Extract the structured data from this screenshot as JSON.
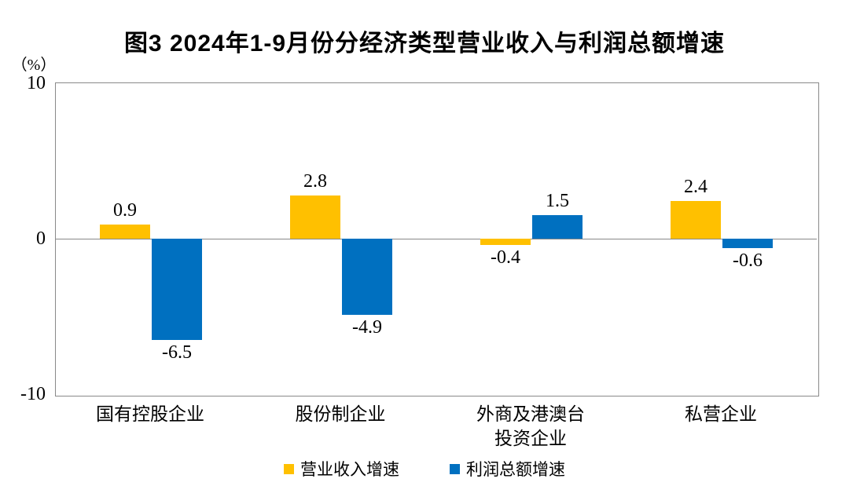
{
  "chart_data": {
    "type": "bar",
    "title": "图3  2024年1-9月份分经济类型营业收入与利润总额增速",
    "unit_label": "（%）",
    "categories": [
      "国有控股企业",
      "股份制企业",
      "外商及港澳台\n投资企业",
      "私营企业"
    ],
    "series": [
      {
        "id": "revenue-growth",
        "name": "营业收入增速",
        "color": "#FFC000",
        "values": [
          0.9,
          2.8,
          -0.4,
          2.4
        ]
      },
      {
        "id": "profit-growth",
        "name": "利润总额增速",
        "color": "#0070C0",
        "values": [
          -6.5,
          -4.9,
          1.5,
          -0.6
        ]
      }
    ],
    "ylim": [
      -10,
      10
    ],
    "yticks": [
      10,
      0,
      -10
    ],
    "grid": "zero-line-only",
    "legend_position": "bottom",
    "value_labels": true,
    "frame_color": "#898989"
  }
}
